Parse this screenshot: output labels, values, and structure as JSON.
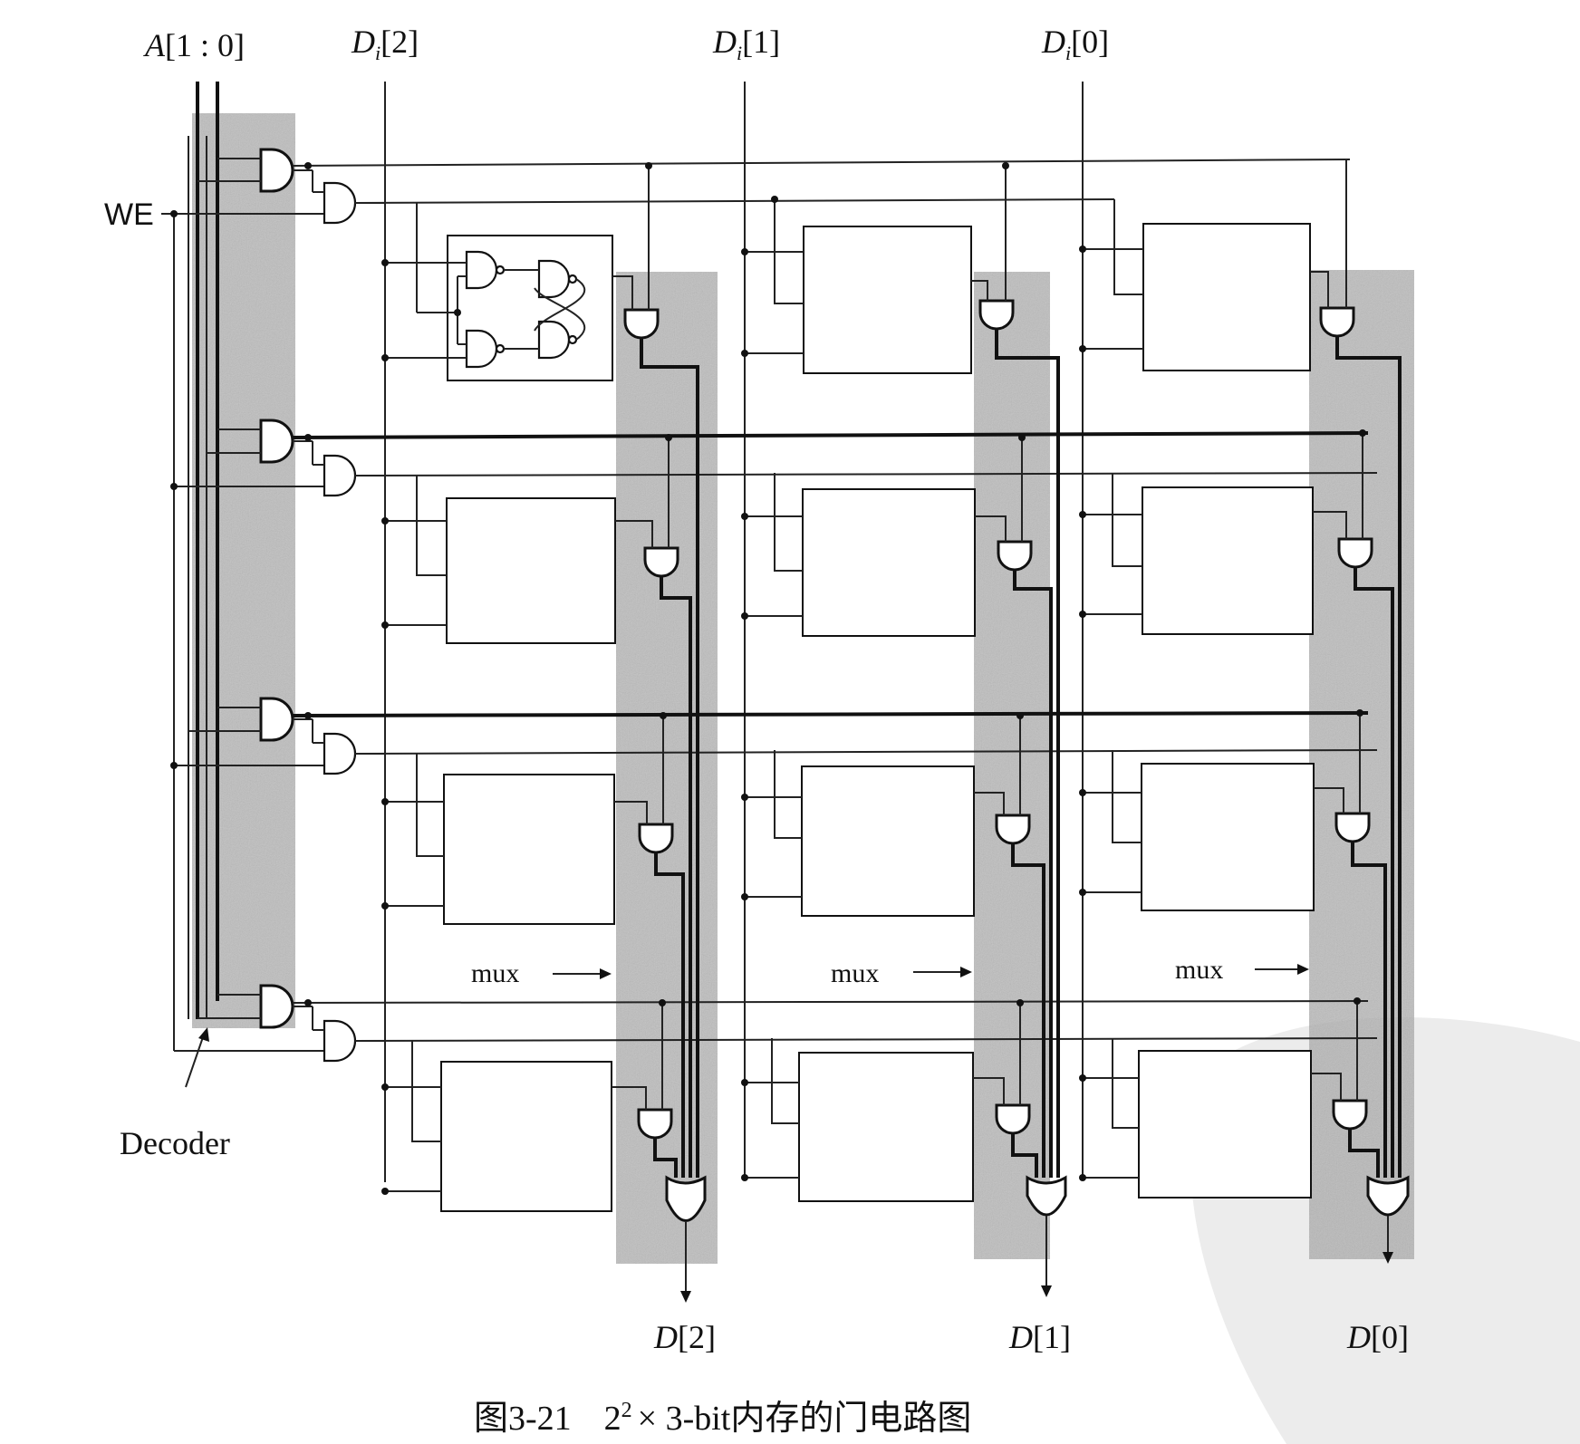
{
  "address_label": "A[1 : 0]",
  "data_in": [
    {
      "label_main": "D",
      "label_sub": "i",
      "label_index": "[2]"
    },
    {
      "label_main": "D",
      "label_sub": "i",
      "label_index": "[1]"
    },
    {
      "label_main": "D",
      "label_sub": "i",
      "label_index": "[0]"
    }
  ],
  "write_enable_label": "WE",
  "decoder_label": "Decoder",
  "mux_label": "mux",
  "data_out": [
    {
      "label_main": "D",
      "label_index": "[2]"
    },
    {
      "label_main": "D",
      "label_index": "[1]"
    },
    {
      "label_main": "D",
      "label_index": "[0]"
    }
  ],
  "caption": {
    "number": "图3-21",
    "base": "2",
    "exponent": "2",
    "rest": "× 3-bit内存的门电路图"
  },
  "colors": {
    "shading": "#9a9a9a",
    "ink": "#111111",
    "watermark": "#e8e8e8"
  }
}
